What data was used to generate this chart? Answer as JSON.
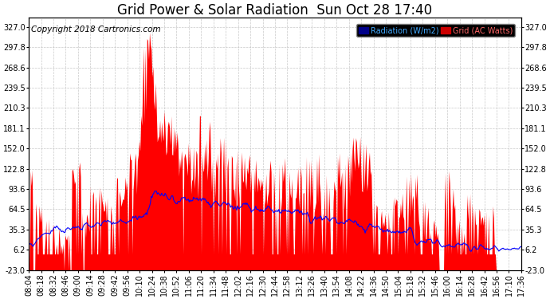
{
  "title": "Grid Power & Solar Radiation  Sun Oct 28 17:40",
  "copyright": "Copyright 2018 Cartronics.com",
  "yticks": [
    327.0,
    297.8,
    268.6,
    239.5,
    210.3,
    181.1,
    152.0,
    122.8,
    93.6,
    64.5,
    35.3,
    6.2,
    -23.0
  ],
  "ylim": [
    -23.0,
    340.0
  ],
  "xtick_labels": [
    "08:04",
    "08:18",
    "08:32",
    "08:46",
    "09:00",
    "09:14",
    "09:28",
    "09:42",
    "09:56",
    "10:10",
    "10:24",
    "10:38",
    "10:52",
    "11:06",
    "11:20",
    "11:34",
    "11:48",
    "12:02",
    "12:16",
    "12:30",
    "12:44",
    "12:58",
    "13:12",
    "13:26",
    "13:40",
    "13:54",
    "14:08",
    "14:22",
    "14:36",
    "14:50",
    "15:04",
    "15:18",
    "15:32",
    "15:46",
    "16:00",
    "16:14",
    "16:28",
    "16:42",
    "16:56",
    "17:10",
    "17:36"
  ],
  "fill_color": "#ff0000",
  "line_color": "#0000ff",
  "background_color": "#ffffff",
  "grid_color": "#bbbbbb",
  "title_fontsize": 12,
  "tick_fontsize": 7,
  "copyright_fontsize": 7.5
}
